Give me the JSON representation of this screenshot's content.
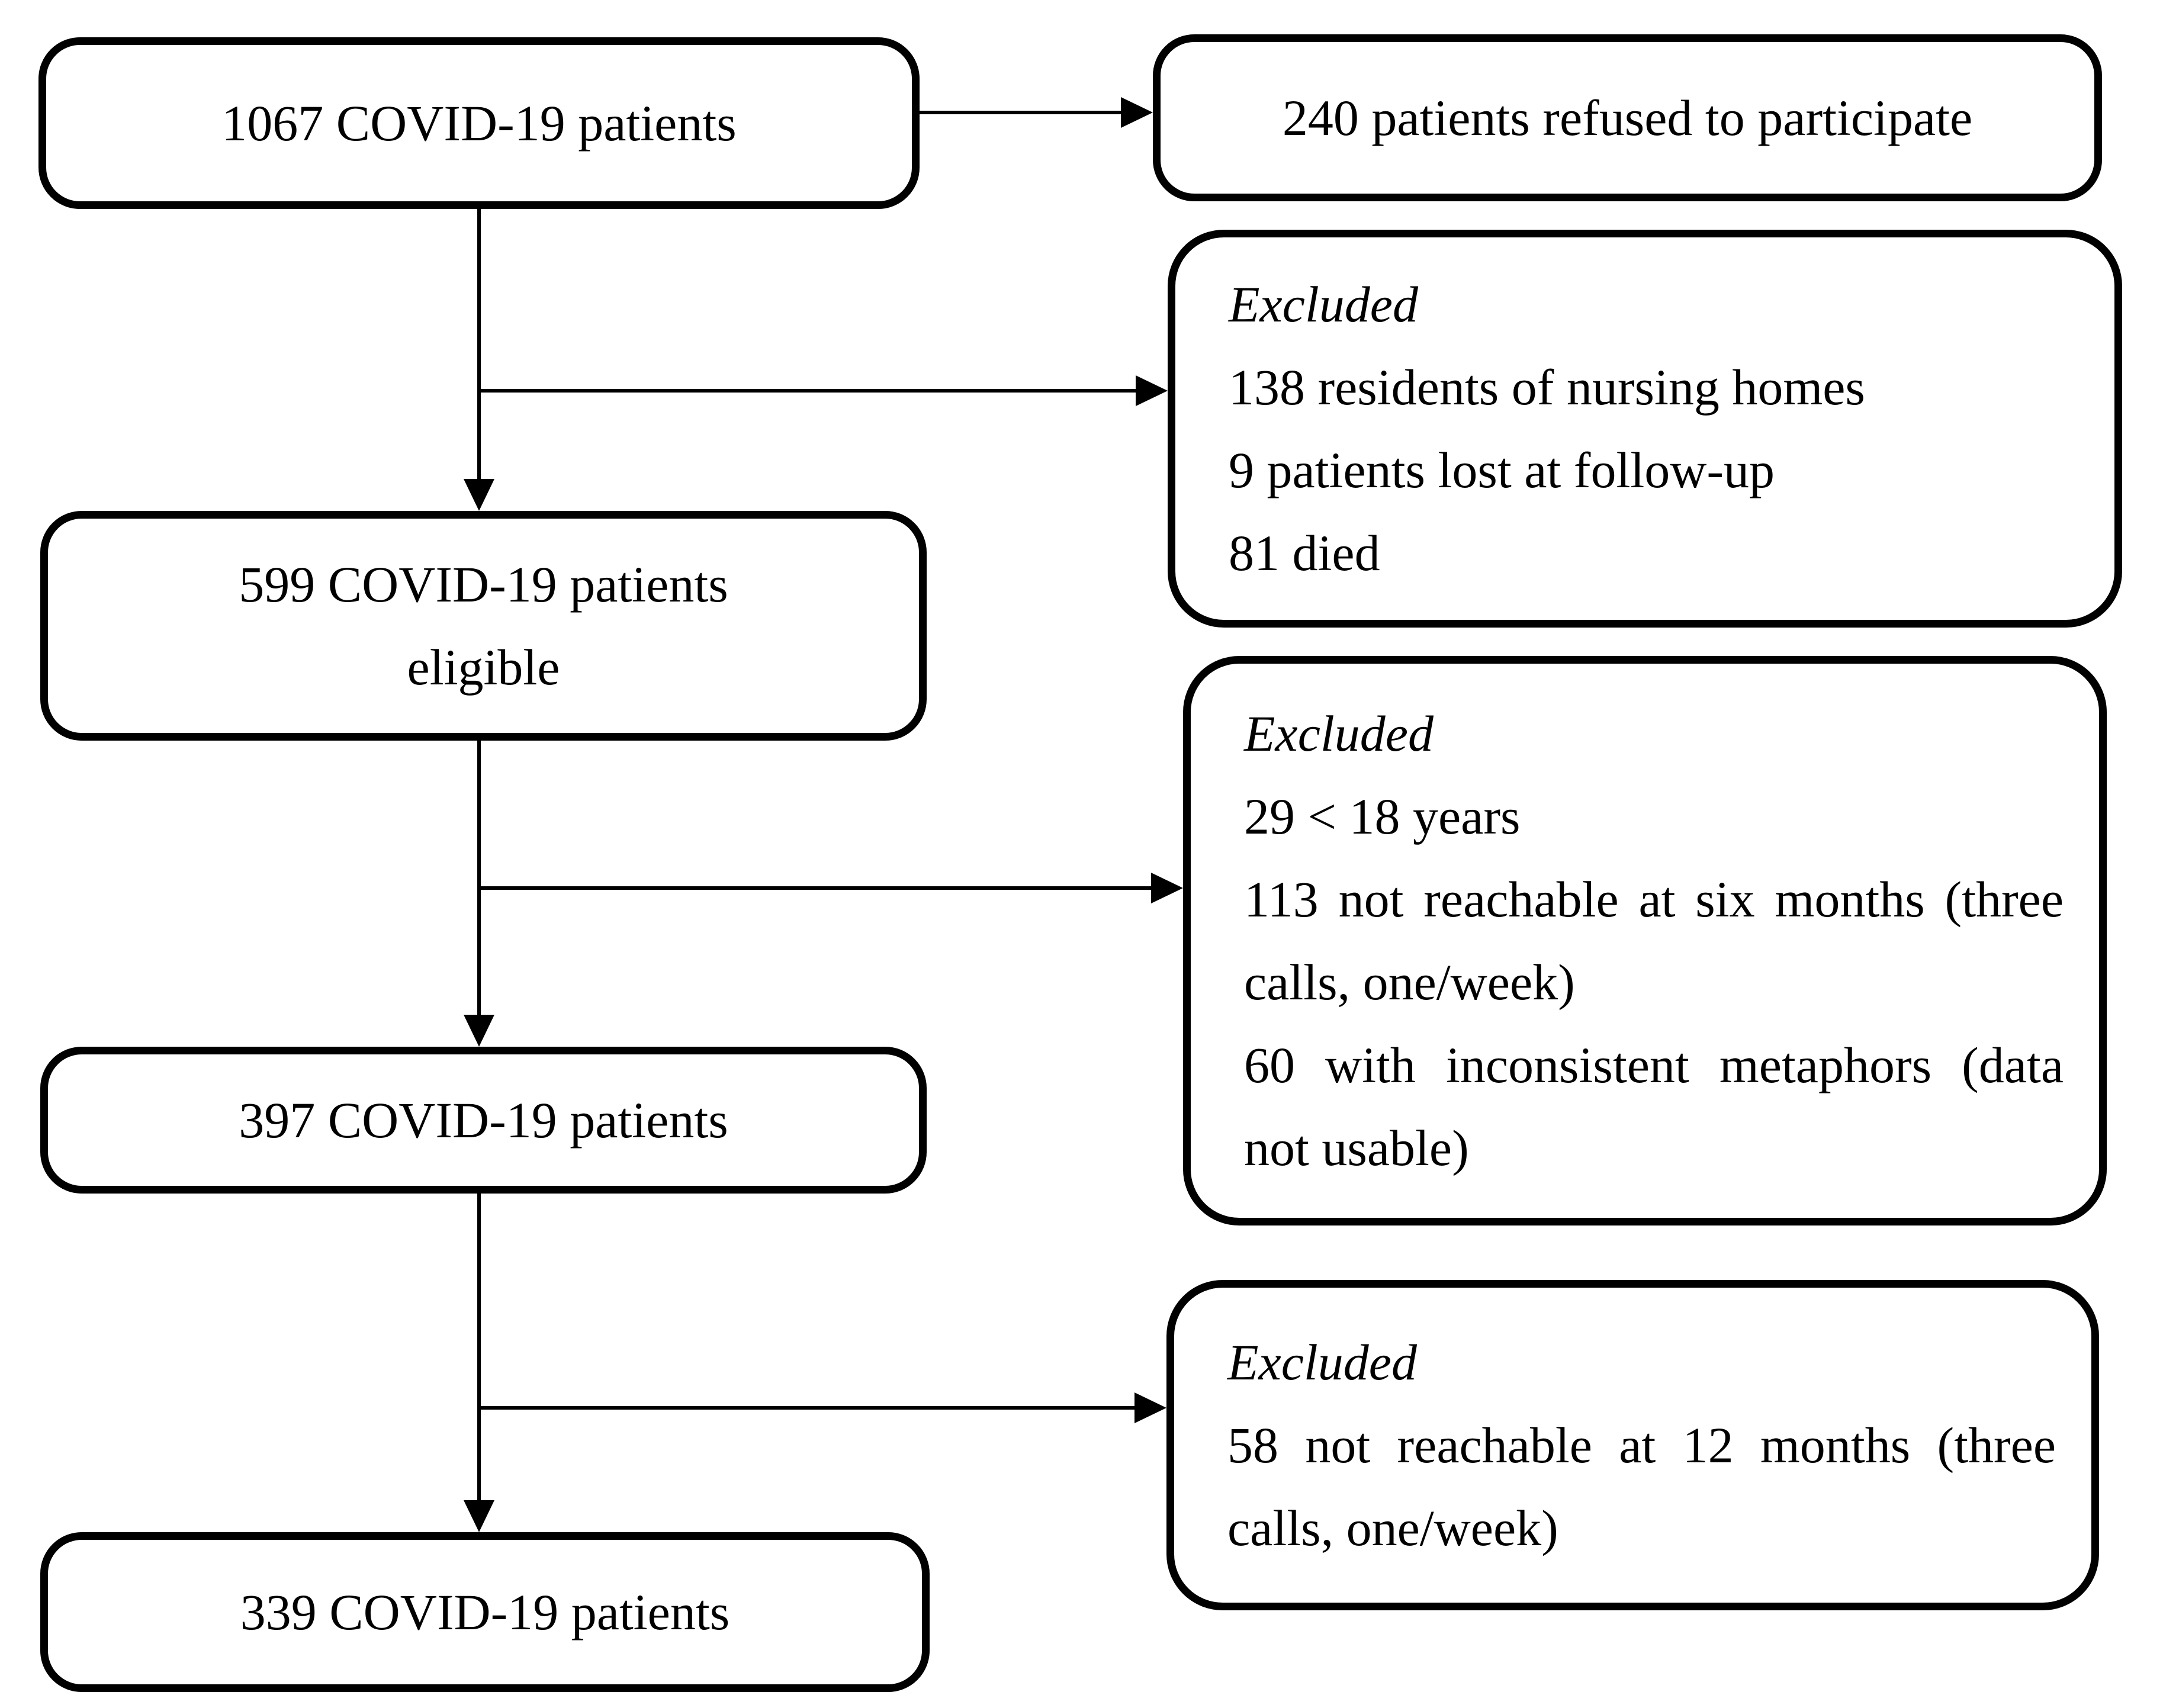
{
  "diagram": {
    "description": "COVID-19 patient enrolment flowchart",
    "colors": {
      "ink": "#000000",
      "background": "#ffffff"
    },
    "boxes": {
      "enrolled": {
        "text": "1067 COVID-19 patients"
      },
      "refused": {
        "text": "240 patients refused to participate"
      },
      "excluded1": {
        "lines": [
          {
            "text": "Excluded",
            "italic": true
          },
          {
            "text": "138 residents of nursing homes"
          },
          {
            "text": "9 patients lost at follow-up"
          },
          {
            "text": "81 died"
          }
        ]
      },
      "eligible": {
        "lines": [
          {
            "text": "599 COVID-19 patients"
          },
          {
            "text": "eligible"
          }
        ]
      },
      "excluded2": {
        "lines": [
          {
            "text": "Excluded",
            "italic": true
          },
          {
            "text": "29 < 18 years"
          },
          {
            "text": "113 not reachable at six months (three",
            "justify": true
          },
          {
            "text": "calls, one/week)"
          },
          {
            "text": "60 with inconsistent metaphors (data",
            "justify": true
          },
          {
            "text": "not usable)"
          }
        ]
      },
      "six_months": {
        "text": "397 COVID-19 patients"
      },
      "excluded3": {
        "lines": [
          {
            "text": "Excluded",
            "italic": true
          },
          {
            "text": "58 not reachable at 12 months (three",
            "justify": true
          },
          {
            "text": "calls, one/week)"
          }
        ]
      },
      "twelve_months": {
        "text": "339 COVID-19 patients"
      }
    }
  }
}
